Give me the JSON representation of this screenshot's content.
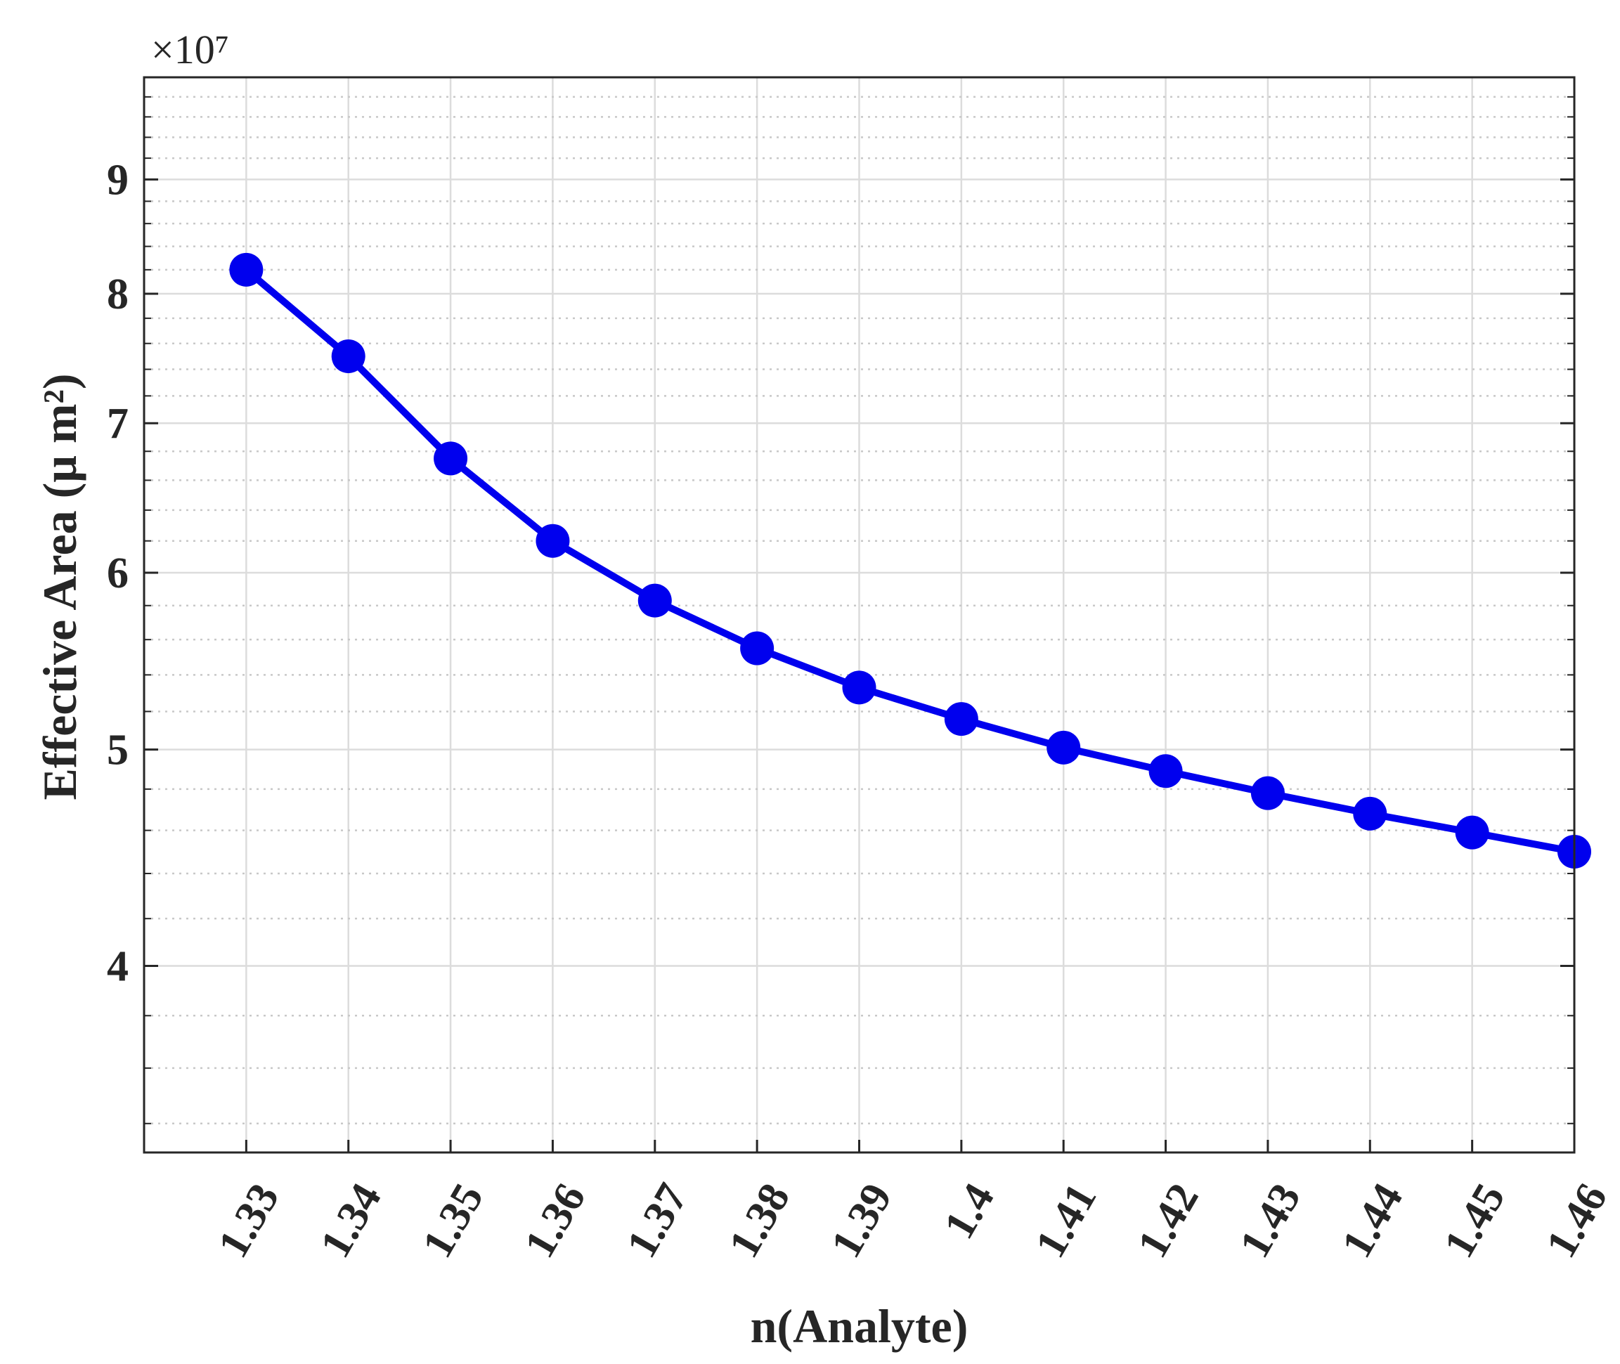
{
  "chart_data": {
    "type": "line",
    "xlabel": "n(Analyte)",
    "ylabel": "Effective Area (μ m²)",
    "y_scale": "log",
    "y_multiplier_label": "×10⁷",
    "x_tick_labels": [
      "1.33",
      "1.34",
      "1.35",
      "1.36",
      "1.37",
      "1.38",
      "1.39",
      "1.4",
      "1.41",
      "1.42",
      "1.43",
      "1.44",
      "1.45",
      "1.46"
    ],
    "y_tick_labels": [
      "4",
      "5",
      "6",
      "7",
      "8",
      "9"
    ],
    "y_tick_values": [
      4,
      5,
      6,
      7,
      8,
      9
    ],
    "xlim": [
      1.32,
      1.46
    ],
    "ylim": [
      3.3,
      10.0
    ],
    "grid": true,
    "line_color": "#0000ee",
    "series": [
      {
        "x": [
          1.33,
          1.34,
          1.35,
          1.36,
          1.37,
          1.38,
          1.39,
          1.4,
          1.41,
          1.42,
          1.43,
          1.44,
          1.45,
          1.46
        ],
        "values": [
          8.2,
          7.5,
          6.75,
          6.2,
          5.83,
          5.55,
          5.33,
          5.16,
          5.01,
          4.89,
          4.78,
          4.68,
          4.59,
          4.5
        ]
      }
    ]
  }
}
